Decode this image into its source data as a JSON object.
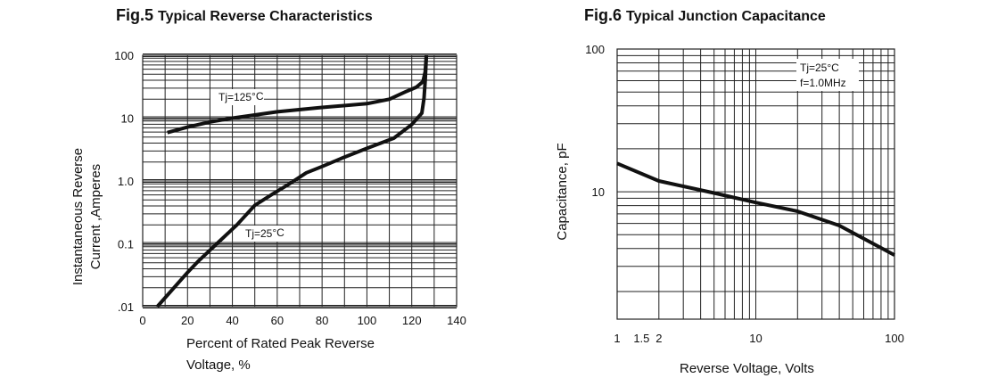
{
  "chart_data": [
    {
      "type": "line",
      "fig": "Fig.5",
      "title": "Typical Reverse  Characteristics",
      "xlabel": [
        "Percent of Rated Peak  Reverse",
        "Voltage, %"
      ],
      "ylabel": [
        "Instantaneous Reverse",
        "Current ,Amperes"
      ],
      "xlim": [
        0,
        140
      ],
      "ylim": [
        0.01,
        100
      ],
      "yscale": "log",
      "xticks": [
        "0",
        "20",
        "40",
        "60",
        "80",
        "100",
        "120",
        "140"
      ],
      "xtick_values": [
        0,
        20,
        40,
        60,
        80,
        100,
        120,
        140
      ],
      "yticks": [
        ".01",
        "0.1",
        "1.0",
        "10",
        "100"
      ],
      "ytick_values": [
        0.01,
        0.1,
        1,
        10,
        100
      ],
      "grid": true,
      "series": [
        {
          "name": "Tj=125°C",
          "label": "Tj=125",
          "label_unit": "°C",
          "x": [
            11,
            20,
            30,
            40,
            60,
            80,
            100,
            110,
            117,
            122,
            125,
            126,
            126.5
          ],
          "y": [
            5.9,
            7.2,
            8.7,
            10,
            12.6,
            14.8,
            17,
            20,
            26,
            31,
            38,
            55,
            100
          ]
        },
        {
          "name": "Tj=25°C",
          "label": "Tj=25",
          "label_unit": "°C",
          "x": [
            6.5,
            20,
            25,
            33,
            42,
            50,
            58,
            65,
            73,
            80,
            90,
            100,
            112,
            120,
            124.5,
            125.5,
            126,
            126.5
          ],
          "y": [
            0.01,
            0.035,
            0.054,
            0.1,
            0.2,
            0.41,
            0.62,
            0.88,
            1.35,
            1.7,
            2.4,
            3.3,
            4.8,
            7.9,
            12,
            21,
            40,
            100
          ]
        }
      ]
    },
    {
      "type": "line",
      "fig": "Fig.6",
      "title": "Typical Junction Capacitance",
      "xlabel": [
        "Reverse Voltage, Volts"
      ],
      "ylabel": [
        "Capacitance, pF"
      ],
      "xlim": [
        1,
        100
      ],
      "ylim": [
        1.28,
        100
      ],
      "xscale": "log",
      "yscale": "log",
      "xticks": [
        "1",
        "1.5",
        "2",
        "10",
        "100"
      ],
      "xtick_values": [
        1,
        1.5,
        2,
        10,
        100
      ],
      "yticks": [
        "10",
        "100"
      ],
      "ytick_values": [
        10,
        100
      ],
      "grid": true,
      "annotation": [
        "Tj=25",
        "°C",
        "f=1.0MHz"
      ],
      "series": [
        {
          "name": "Capacitance",
          "x": [
            1,
            2,
            5,
            10,
            20,
            40,
            100
          ],
          "y": [
            15.8,
            11.9,
            9.8,
            8.4,
            7.3,
            5.8,
            3.6
          ]
        }
      ]
    }
  ]
}
